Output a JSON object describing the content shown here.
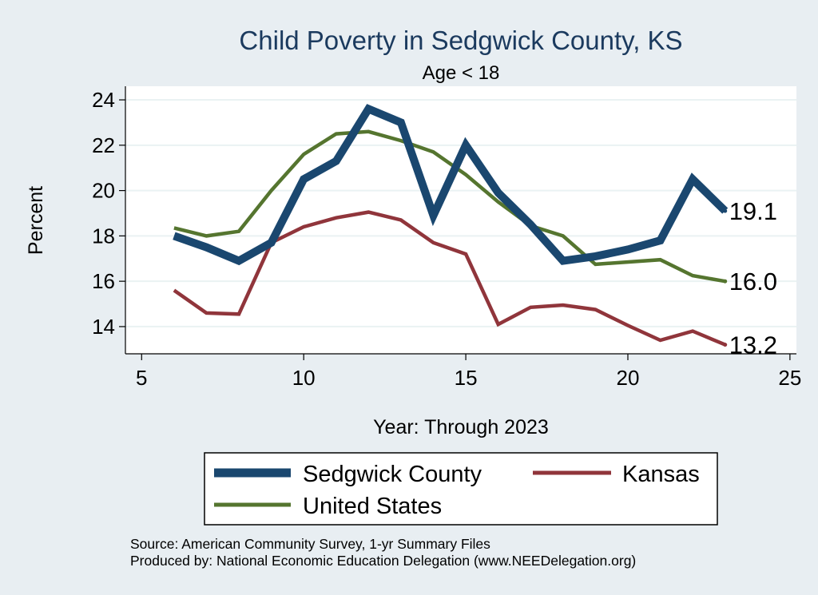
{
  "chart_data": {
    "type": "line",
    "title": "Child Poverty in Sedgwick County, KS",
    "subtitle": "Age < 18",
    "xlabel": "Year: Through 2023",
    "ylabel": "Percent",
    "xlim": [
      5,
      25
    ],
    "ylim": [
      12.8,
      24.6
    ],
    "xticks": [
      5,
      10,
      15,
      20,
      25
    ],
    "yticks": [
      14,
      16,
      18,
      20,
      22,
      24
    ],
    "grid": true,
    "series": [
      {
        "name": "Sedgwick County",
        "color": "#1a476f",
        "x": [
          6,
          7,
          8,
          9,
          10,
          11,
          12,
          13,
          14,
          15,
          16,
          17,
          18,
          19,
          20,
          21,
          22,
          23
        ],
        "values": [
          18.0,
          17.5,
          16.9,
          17.7,
          20.5,
          21.3,
          23.6,
          23.0,
          18.9,
          22.0,
          19.9,
          18.5,
          16.9,
          17.1,
          17.4,
          17.8,
          20.5,
          19.1
        ],
        "end_label": "19.1"
      },
      {
        "name": "Kansas",
        "color": "#90353b",
        "x": [
          6,
          7,
          8,
          9,
          10,
          11,
          12,
          13,
          14,
          15,
          16,
          17,
          18,
          19,
          20,
          21,
          22,
          23
        ],
        "values": [
          15.6,
          14.6,
          14.55,
          17.7,
          18.4,
          18.8,
          19.05,
          18.7,
          17.7,
          17.2,
          14.1,
          14.85,
          14.95,
          14.75,
          14.05,
          13.4,
          13.8,
          13.2
        ],
        "end_label": "13.2"
      },
      {
        "name": "United States",
        "color": "#55752f",
        "x": [
          6,
          7,
          8,
          9,
          10,
          11,
          12,
          13,
          14,
          15,
          16,
          17,
          18,
          19,
          21,
          22,
          23
        ],
        "values": [
          18.35,
          18.0,
          18.2,
          20.0,
          21.6,
          22.5,
          22.6,
          22.2,
          21.7,
          20.7,
          19.5,
          18.45,
          18.0,
          16.75,
          16.95,
          16.25,
          16.0
        ],
        "end_label": "16.0"
      }
    ],
    "legend": {
      "placement": "bottom",
      "entries": [
        "Sedgwick County",
        "Kansas",
        "United States"
      ]
    },
    "notes": [
      "Source: American Community Survey, 1-yr Summary Files",
      "Produced by: National Economic Education Delegation (www.NEEDelegation.org)"
    ]
  }
}
